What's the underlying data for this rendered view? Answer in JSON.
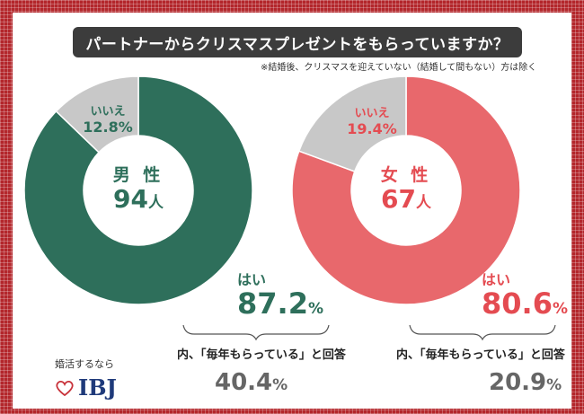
{
  "header": {
    "title": "パートナーからクリスマスプレゼントをもらっていますか？",
    "note": "※結婚後、クリスマスを迎えていない（結婚して間もない）方は除く"
  },
  "colors": {
    "male_yes": "#2e6f5b",
    "female_yes": "#e8686c",
    "no": "#c8c8c8",
    "frame": "#b3262b"
  },
  "chart_data": [
    {
      "type": "pie",
      "title": "男 性",
      "count": "94",
      "count_unit": "人",
      "slices": [
        {
          "label": "はい",
          "value": 87.2
        },
        {
          "label": "いいえ",
          "value": 12.8
        }
      ],
      "yes_value_text": "87.2",
      "no_value_text": "12.8",
      "subset_caption": "内、「毎年もらっている」と回答",
      "subset_value": "40.4"
    },
    {
      "type": "pie",
      "title": "女 性",
      "count": "67",
      "count_unit": "人",
      "slices": [
        {
          "label": "はい",
          "value": 80.6
        },
        {
          "label": "いいえ",
          "value": 19.4
        }
      ],
      "yes_value_text": "80.6",
      "no_value_text": "19.4",
      "subset_caption": "内、「毎年もらっている」と回答",
      "subset_value": "20.9"
    }
  ],
  "labels": {
    "yes": "はい",
    "no": "いいえ",
    "percent": "%"
  },
  "logo": {
    "tagline": "婚活するなら",
    "mark": "IBJ",
    "heart_icon": "heart-outline-icon"
  }
}
